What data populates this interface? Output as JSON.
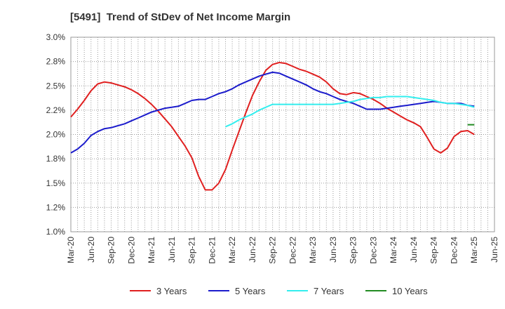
{
  "chart_data": {
    "type": "line",
    "title": "[5491]  Trend of StDev of Net Income Margin",
    "xlim": [
      "Mar-20",
      "Jun-25"
    ],
    "ylim": [
      1.0,
      3.0
    ],
    "grid": true,
    "legend_position": "bottom",
    "x_ticks": [
      "Mar-20",
      "Jun-20",
      "Sep-20",
      "Dec-20",
      "Mar-21",
      "Jun-21",
      "Sep-21",
      "Dec-21",
      "Mar-22",
      "Jun-22",
      "Sep-22",
      "Dec-22",
      "Mar-23",
      "Jun-23",
      "Sep-23",
      "Dec-23",
      "Mar-24",
      "Jun-24",
      "Sep-24",
      "Dec-24",
      "Mar-25",
      "Jun-25"
    ],
    "y_ticks": [
      {
        "value": 1.0,
        "label": "1.0%"
      },
      {
        "value": 1.25,
        "label": "1.2%"
      },
      {
        "value": 1.5,
        "label": "1.5%"
      },
      {
        "value": 1.75,
        "label": "1.8%"
      },
      {
        "value": 2.0,
        "label": "2.0%"
      },
      {
        "value": 2.25,
        "label": "2.2%"
      },
      {
        "value": 2.5,
        "label": "2.5%"
      },
      {
        "value": 2.75,
        "label": "2.8%"
      },
      {
        "value": 3.0,
        "label": "3.0%"
      }
    ],
    "x": [
      "Mar-20",
      "Apr-20",
      "May-20",
      "Jun-20",
      "Jul-20",
      "Aug-20",
      "Sep-20",
      "Oct-20",
      "Nov-20",
      "Dec-20",
      "Jan-21",
      "Feb-21",
      "Mar-21",
      "Apr-21",
      "May-21",
      "Jun-21",
      "Jul-21",
      "Aug-21",
      "Sep-21",
      "Oct-21",
      "Nov-21",
      "Dec-21",
      "Jan-22",
      "Feb-22",
      "Mar-22",
      "Apr-22",
      "May-22",
      "Jun-22",
      "Jul-22",
      "Aug-22",
      "Sep-22",
      "Oct-22",
      "Nov-22",
      "Dec-22",
      "Jan-23",
      "Feb-23",
      "Mar-23",
      "Apr-23",
      "May-23",
      "Jun-23",
      "Jul-23",
      "Aug-23",
      "Sep-23",
      "Oct-23",
      "Nov-23",
      "Dec-23",
      "Jan-24",
      "Feb-24",
      "Mar-24",
      "Apr-24",
      "May-24",
      "Jun-24",
      "Jul-24",
      "Aug-24",
      "Sep-24",
      "Oct-24",
      "Nov-24",
      "Dec-24",
      "Jan-25",
      "Feb-25",
      "Mar-25"
    ],
    "series": [
      {
        "name": "3 Years",
        "color": "#e02020",
        "values": [
          2.18,
          2.26,
          2.35,
          2.45,
          2.52,
          2.54,
          2.53,
          2.51,
          2.49,
          2.46,
          2.42,
          2.37,
          2.31,
          2.24,
          2.16,
          2.08,
          1.98,
          1.88,
          1.76,
          1.57,
          1.43,
          1.43,
          1.5,
          1.64,
          1.84,
          2.03,
          2.22,
          2.4,
          2.54,
          2.66,
          2.72,
          2.74,
          2.73,
          2.7,
          2.67,
          2.65,
          2.62,
          2.59,
          2.54,
          2.47,
          2.42,
          2.41,
          2.43,
          2.42,
          2.39,
          2.36,
          2.32,
          2.27,
          2.23,
          2.19,
          2.15,
          2.12,
          2.08,
          1.97,
          1.85,
          1.81,
          1.86,
          1.98,
          2.03,
          2.04,
          2.0
        ]
      },
      {
        "name": "5 Years",
        "color": "#1c1ccc",
        "values": [
          1.81,
          1.85,
          1.91,
          1.99,
          2.03,
          2.06,
          2.07,
          2.09,
          2.11,
          2.14,
          2.17,
          2.2,
          2.23,
          2.25,
          2.27,
          2.28,
          2.29,
          2.32,
          2.35,
          2.36,
          2.36,
          2.39,
          2.42,
          2.44,
          2.47,
          2.51,
          2.54,
          2.57,
          2.6,
          2.62,
          2.64,
          2.63,
          2.6,
          2.57,
          2.54,
          2.51,
          2.47,
          2.44,
          2.42,
          2.39,
          2.36,
          2.34,
          2.32,
          2.29,
          2.26,
          2.26,
          2.26,
          2.27,
          2.28,
          2.29,
          2.3,
          2.31,
          2.32,
          2.33,
          2.34,
          2.33,
          2.32,
          2.32,
          2.32,
          2.3,
          2.29
        ]
      },
      {
        "name": "7 Years",
        "color": "#33eeee",
        "values": [
          null,
          null,
          null,
          null,
          null,
          null,
          null,
          null,
          null,
          null,
          null,
          null,
          null,
          null,
          null,
          null,
          null,
          null,
          null,
          null,
          null,
          null,
          null,
          2.08,
          2.11,
          2.15,
          2.18,
          2.21,
          2.25,
          2.28,
          2.31,
          2.31,
          2.31,
          2.31,
          2.31,
          2.31,
          2.31,
          2.31,
          2.31,
          2.31,
          2.32,
          2.33,
          2.34,
          2.36,
          2.37,
          2.38,
          2.38,
          2.39,
          2.39,
          2.39,
          2.39,
          2.38,
          2.37,
          2.36,
          2.35,
          2.33,
          2.32,
          2.32,
          2.31,
          2.3,
          2.28
        ]
      },
      {
        "name": "10 Years",
        "color": "#228b22",
        "values": [
          null,
          null,
          null,
          null,
          null,
          null,
          null,
          null,
          null,
          null,
          null,
          null,
          null,
          null,
          null,
          null,
          null,
          null,
          null,
          null,
          null,
          null,
          null,
          null,
          null,
          null,
          null,
          null,
          null,
          null,
          null,
          null,
          null,
          null,
          null,
          null,
          null,
          null,
          null,
          null,
          null,
          null,
          null,
          null,
          null,
          null,
          null,
          null,
          null,
          null,
          null,
          null,
          null,
          null,
          null,
          null,
          null,
          null,
          null,
          2.1,
          2.1
        ]
      }
    ]
  }
}
